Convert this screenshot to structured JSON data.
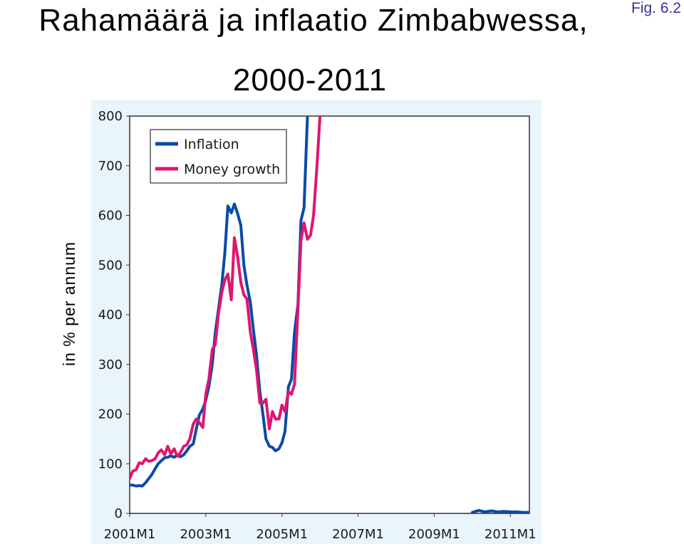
{
  "header": {
    "title_line1": "Rahamäärä ja inflaatio Zimbabwessa,",
    "title_line2": "2000-2011",
    "figure_label": "Fig. 6.2",
    "y_axis_label": "in % per annum"
  },
  "chart_data": {
    "type": "line",
    "title": "Rahamäärä ja inflaatio Zimbabwessa, 2000-2011",
    "xlabel": "",
    "ylabel": "in % per annum",
    "ylim": [
      0,
      800
    ],
    "xlim": [
      2001.0,
      2011.5
    ],
    "yticks": [
      0,
      100,
      200,
      300,
      400,
      500,
      600,
      700,
      800
    ],
    "xticks": [
      {
        "value": 2001.0,
        "label": "2001M1"
      },
      {
        "value": 2003.0,
        "label": "2003M1"
      },
      {
        "value": 2005.0,
        "label": "2005M1"
      },
      {
        "value": 2007.0,
        "label": "2007M1"
      },
      {
        "value": 2009.0,
        "label": "2009M1"
      },
      {
        "value": 2011.0,
        "label": "2011M1"
      }
    ],
    "grid": false,
    "legend": "top-left",
    "series": [
      {
        "name": "Inflation",
        "color": "#0a4aa8",
        "segments": [
          [
            [
              2001.0,
              57
            ],
            [
              2001.08,
              57
            ],
            [
              2001.17,
              55
            ],
            [
              2001.25,
              56
            ],
            [
              2001.33,
              55
            ],
            [
              2001.42,
              62
            ],
            [
              2001.5,
              70
            ],
            [
              2001.58,
              78
            ],
            [
              2001.67,
              90
            ],
            [
              2001.75,
              100
            ],
            [
              2001.83,
              106
            ],
            [
              2001.92,
              112
            ],
            [
              2002.0,
              113
            ],
            [
              2002.08,
              116
            ],
            [
              2002.17,
              113
            ],
            [
              2002.25,
              118
            ],
            [
              2002.33,
              114
            ],
            [
              2002.42,
              118
            ],
            [
              2002.5,
              126
            ],
            [
              2002.58,
              135
            ],
            [
              2002.67,
              140
            ],
            [
              2002.75,
              170
            ],
            [
              2002.83,
              198
            ],
            [
              2002.92,
              210
            ],
            [
              2003.0,
              228
            ],
            [
              2003.08,
              255
            ],
            [
              2003.17,
              300
            ],
            [
              2003.25,
              365
            ],
            [
              2003.33,
              410
            ],
            [
              2003.42,
              460
            ],
            [
              2003.5,
              525
            ],
            [
              2003.58,
              619
            ],
            [
              2003.67,
              605
            ],
            [
              2003.75,
              623
            ],
            [
              2003.83,
              605
            ],
            [
              2003.92,
              580
            ],
            [
              2004.0,
              500
            ],
            [
              2004.08,
              460
            ],
            [
              2004.17,
              425
            ],
            [
              2004.25,
              370
            ],
            [
              2004.33,
              320
            ],
            [
              2004.42,
              245
            ],
            [
              2004.5,
              200
            ],
            [
              2004.58,
              150
            ],
            [
              2004.67,
              135
            ],
            [
              2004.75,
              133
            ],
            [
              2004.83,
              126
            ],
            [
              2004.92,
              130
            ],
            [
              2005.0,
              142
            ],
            [
              2005.08,
              165
            ],
            [
              2005.17,
              255
            ],
            [
              2005.25,
              270
            ],
            [
              2005.33,
              365
            ],
            [
              2005.42,
              420
            ],
            [
              2005.5,
              590
            ],
            [
              2005.58,
              615
            ],
            [
              2005.67,
              800
            ],
            [
              2005.72,
              1000
            ]
          ],
          [
            [
              2010.0,
              2
            ],
            [
              2010.17,
              6
            ],
            [
              2010.33,
              3
            ],
            [
              2010.5,
              5
            ],
            [
              2010.67,
              3
            ],
            [
              2010.83,
              4
            ],
            [
              2011.0,
              3
            ],
            [
              2011.17,
              3
            ],
            [
              2011.33,
              2
            ],
            [
              2011.5,
              2
            ]
          ]
        ]
      },
      {
        "name": "Money growth",
        "color": "#e0156f",
        "segments": [
          [
            [
              2001.0,
              70
            ],
            [
              2001.08,
              85
            ],
            [
              2001.17,
              88
            ],
            [
              2001.25,
              102
            ],
            [
              2001.33,
              100
            ],
            [
              2001.42,
              110
            ],
            [
              2001.5,
              105
            ],
            [
              2001.58,
              106
            ],
            [
              2001.67,
              110
            ],
            [
              2001.75,
              122
            ],
            [
              2001.83,
              128
            ],
            [
              2001.92,
              118
            ],
            [
              2002.0,
              135
            ],
            [
              2002.08,
              120
            ],
            [
              2002.17,
              130
            ],
            [
              2002.25,
              115
            ],
            [
              2002.33,
              122
            ],
            [
              2002.42,
              135
            ],
            [
              2002.5,
              138
            ],
            [
              2002.58,
              150
            ],
            [
              2002.67,
              180
            ],
            [
              2002.75,
              190
            ],
            [
              2002.83,
              183
            ],
            [
              2002.92,
              173
            ],
            [
              2003.0,
              240
            ],
            [
              2003.08,
              270
            ],
            [
              2003.17,
              330
            ],
            [
              2003.25,
              340
            ],
            [
              2003.33,
              400
            ],
            [
              2003.42,
              445
            ],
            [
              2003.5,
              470
            ],
            [
              2003.58,
              482
            ],
            [
              2003.67,
              430
            ],
            [
              2003.75,
              555
            ],
            [
              2003.83,
              520
            ],
            [
              2003.92,
              465
            ],
            [
              2004.0,
              440
            ],
            [
              2004.08,
              432
            ],
            [
              2004.17,
              365
            ],
            [
              2004.25,
              330
            ],
            [
              2004.33,
              290
            ],
            [
              2004.42,
              222
            ],
            [
              2004.5,
              222
            ],
            [
              2004.58,
              230
            ],
            [
              2004.67,
              170
            ],
            [
              2004.75,
              205
            ],
            [
              2004.83,
              190
            ],
            [
              2004.92,
              190
            ],
            [
              2005.0,
              218
            ],
            [
              2005.08,
              205
            ],
            [
              2005.17,
              245
            ],
            [
              2005.25,
              240
            ],
            [
              2005.33,
              260
            ],
            [
              2005.42,
              410
            ],
            [
              2005.5,
              550
            ],
            [
              2005.58,
              585
            ],
            [
              2005.67,
              552
            ],
            [
              2005.75,
              560
            ],
            [
              2005.83,
              600
            ],
            [
              2005.92,
              700
            ],
            [
              2006.0,
              800
            ],
            [
              2006.05,
              1000
            ]
          ]
        ]
      }
    ]
  }
}
